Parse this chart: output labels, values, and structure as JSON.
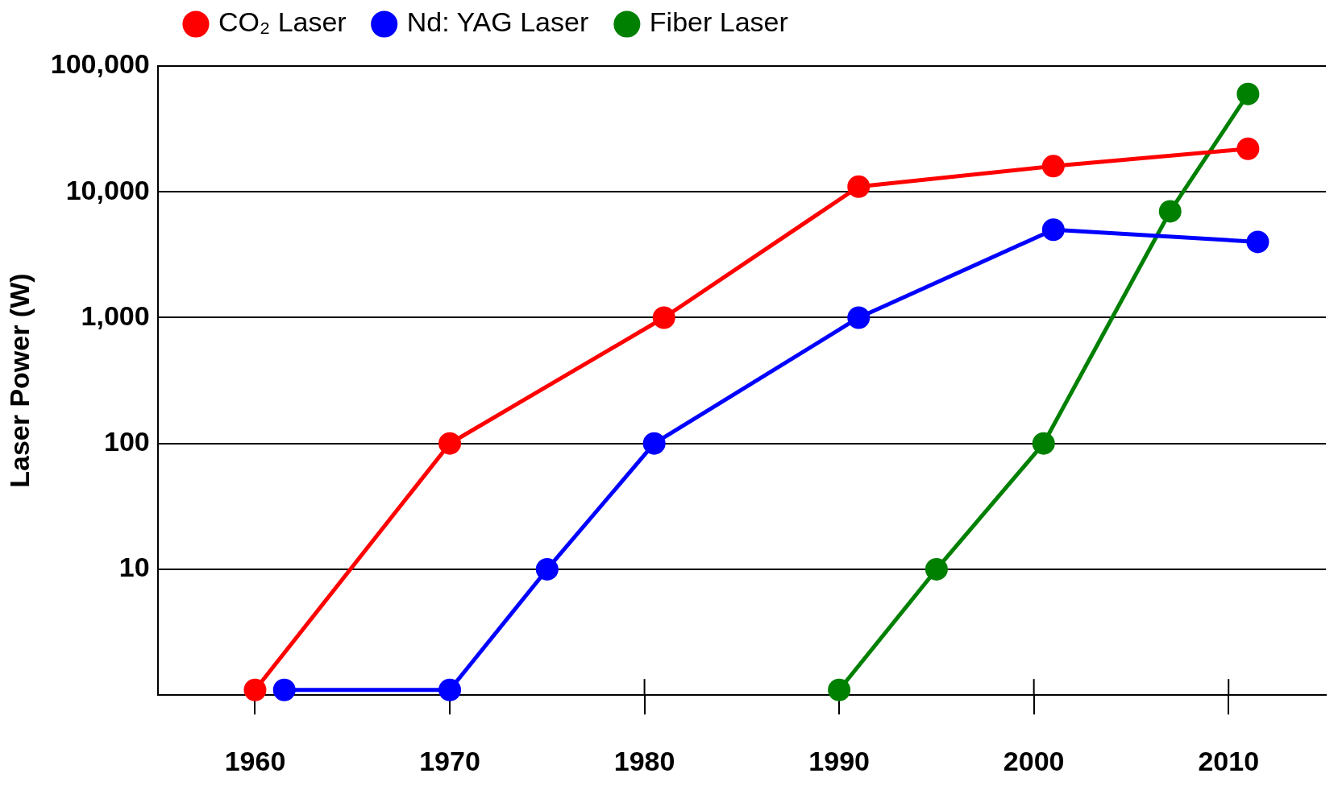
{
  "chart_data": {
    "type": "line",
    "ylabel": "Laser Power (W)",
    "log": "y",
    "xlim": [
      1955,
      2015
    ],
    "xticks": [
      1960,
      1970,
      1980,
      1990,
      2000,
      2010
    ],
    "ylim": [
      1,
      100000
    ],
    "yticks": [
      10,
      100,
      {
        "value": 1000,
        "label": "1,000"
      },
      {
        "value": 10000,
        "label": "10,000"
      },
      {
        "value": 100000,
        "label": "100,000"
      }
    ],
    "grid": "y",
    "legend": "top left",
    "marker": "circle",
    "line_style": "solid",
    "series": [
      {
        "name": "CO₂ Laser",
        "color": "#ff0000",
        "x": [
          1960,
          1970,
          1981,
          1991,
          2001,
          2011
        ],
        "values": [
          1.1,
          100,
          1000,
          11000,
          16000,
          22000
        ]
      },
      {
        "name": "Nd: YAG Laser",
        "color": "#0000ff",
        "x": [
          1961.5,
          1970,
          1975,
          1980.5,
          1991,
          2001,
          2011.5
        ],
        "values": [
          1.1,
          1.1,
          10,
          100,
          1000,
          5000,
          4000
        ]
      },
      {
        "name": "Fiber Laser",
        "color": "#008000",
        "x": [
          1990,
          1995,
          2000.5,
          2007,
          2011
        ],
        "values": [
          1.1,
          10,
          100,
          7000,
          60000
        ]
      }
    ]
  }
}
